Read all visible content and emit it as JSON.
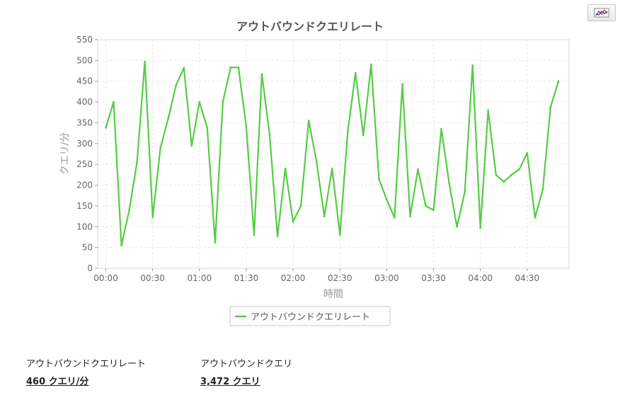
{
  "toolbar": {
    "chart_type_icon": "line-chart-icon"
  },
  "chart_data": {
    "type": "line",
    "title": "アウトバウンドクエリレート",
    "xlabel": "時間",
    "ylabel": "クエリ/分",
    "ylim": [
      0,
      550
    ],
    "yticks": [
      0,
      50,
      100,
      150,
      200,
      250,
      300,
      350,
      400,
      450,
      500,
      550
    ],
    "xtick_labels": [
      "00:00",
      "00:30",
      "01:00",
      "01:30",
      "02:00",
      "02:30",
      "03:00",
      "03:30",
      "04:00",
      "04:30"
    ],
    "x_step_minutes": 5,
    "grid": true,
    "legend_position": "bottom",
    "series": [
      {
        "name": "アウトバウンドクエリレート",
        "color": "#55cc44",
        "values": [
          338,
          400,
          55,
          140,
          255,
          497,
          123,
          290,
          360,
          440,
          482,
          295,
          400,
          338,
          62,
          400,
          483,
          483,
          340,
          80,
          467,
          320,
          77,
          240,
          112,
          150,
          355,
          257,
          125,
          240,
          80,
          328,
          470,
          320,
          490,
          215,
          165,
          122,
          443,
          125,
          238,
          150,
          140,
          335,
          205,
          100,
          183,
          488,
          97,
          380,
          225,
          208,
          225,
          238,
          277,
          122,
          190,
          388,
          450
        ]
      }
    ]
  },
  "stats": [
    {
      "label": "アウトバウンドクエリレート",
      "value": "460 クエリ/分"
    },
    {
      "label": "アウトバウンドクエリ",
      "value": "3,472 クエリ"
    }
  ]
}
